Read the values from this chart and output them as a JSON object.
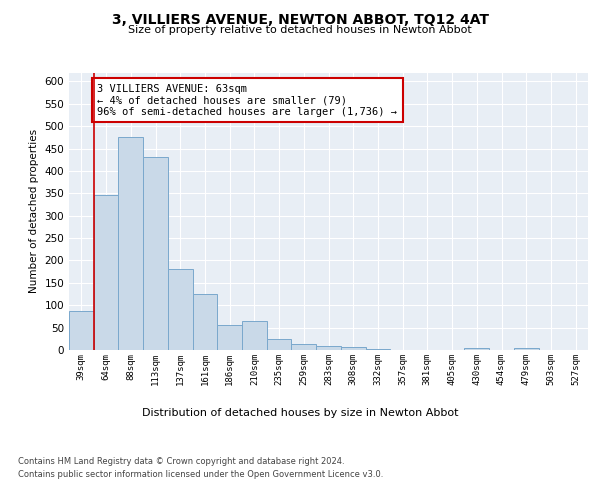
{
  "title": "3, VILLIERS AVENUE, NEWTON ABBOT, TQ12 4AT",
  "subtitle": "Size of property relative to detached houses in Newton Abbot",
  "xlabel": "Distribution of detached houses by size in Newton Abbot",
  "ylabel": "Number of detached properties",
  "categories": [
    "39sqm",
    "64sqm",
    "88sqm",
    "113sqm",
    "137sqm",
    "161sqm",
    "186sqm",
    "210sqm",
    "235sqm",
    "259sqm",
    "283sqm",
    "308sqm",
    "332sqm",
    "357sqm",
    "381sqm",
    "405sqm",
    "430sqm",
    "454sqm",
    "479sqm",
    "503sqm",
    "527sqm"
  ],
  "values": [
    88,
    347,
    477,
    432,
    181,
    126,
    55,
    65,
    25,
    13,
    9,
    7,
    3,
    1,
    1,
    0,
    5,
    0,
    5,
    0,
    0
  ],
  "bar_color": "#c9d9e8",
  "bar_edge_color": "#7aa8cc",
  "annotation_box_text": "3 VILLIERS AVENUE: 63sqm\n← 4% of detached houses are smaller (79)\n96% of semi-detached houses are larger (1,736) →",
  "annotation_box_color": "#ffffff",
  "annotation_box_edge_color": "#cc0000",
  "annotation_line_color": "#cc0000",
  "footer_line1": "Contains HM Land Registry data © Crown copyright and database right 2024.",
  "footer_line2": "Contains public sector information licensed under the Open Government Licence v3.0.",
  "ylim": [
    0,
    620
  ],
  "yticks": [
    0,
    50,
    100,
    150,
    200,
    250,
    300,
    350,
    400,
    450,
    500,
    550,
    600
  ],
  "plot_bg_color": "#e8eef5"
}
